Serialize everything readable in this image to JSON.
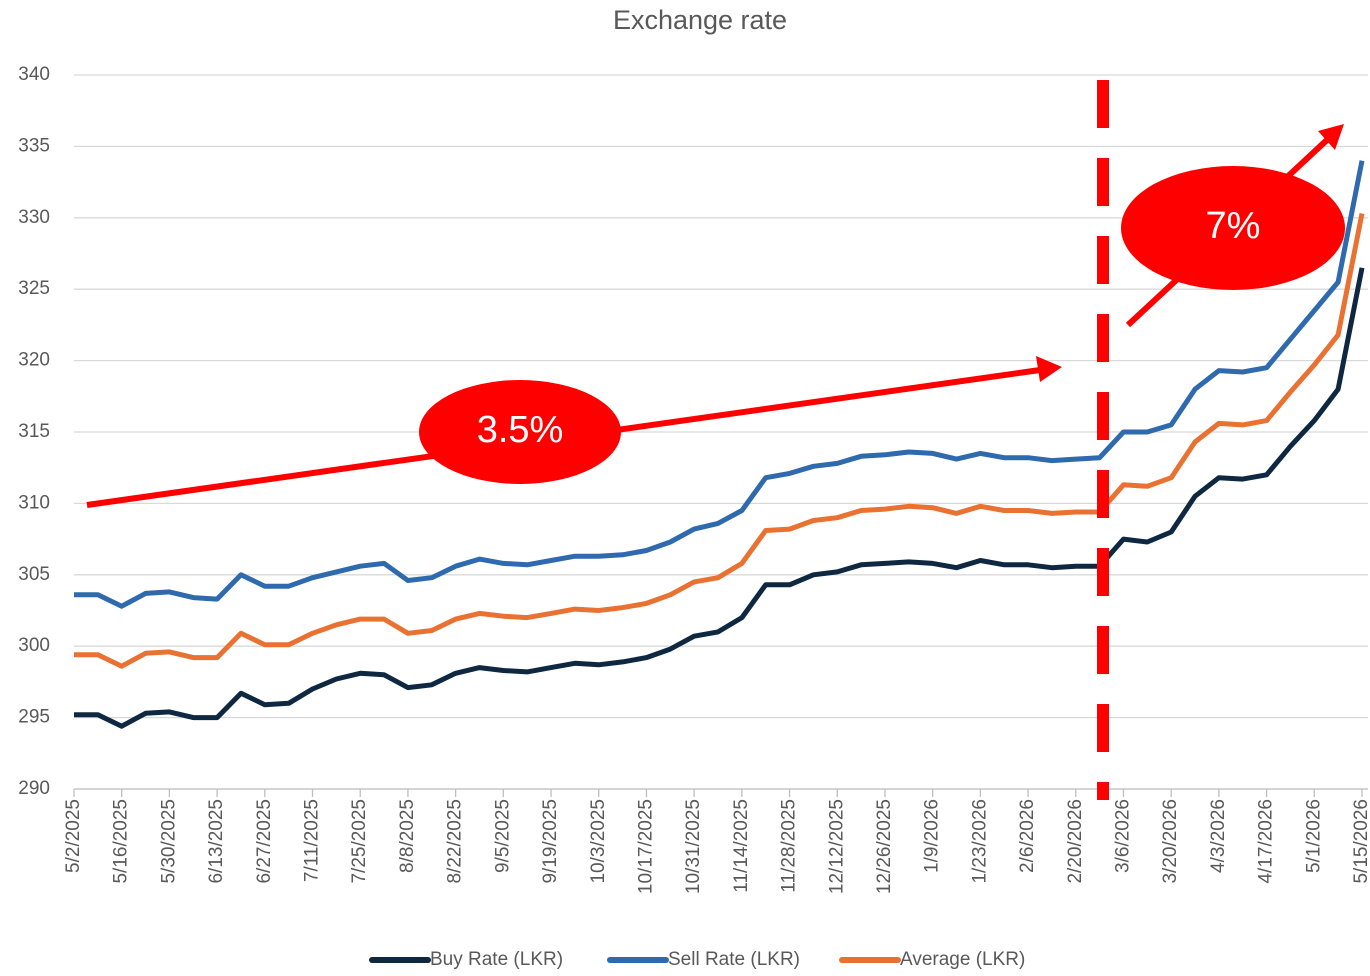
{
  "chart_data": {
    "type": "line",
    "title": "Exchange rate",
    "categories": [
      "5/2/2025",
      null,
      "5/16/2025",
      null,
      "5/30/2025",
      null,
      "6/13/2025",
      null,
      "6/27/2025",
      null,
      "7/11/2025",
      null,
      "7/25/2025",
      null,
      "8/8/2025",
      null,
      "8/22/2025",
      null,
      "9/5/2025",
      null,
      "9/19/2025",
      null,
      "10/3/2025",
      null,
      "10/17/2025",
      null,
      "10/31/2025",
      null,
      "11/14/2025",
      null,
      "11/28/2025",
      null,
      "12/12/2025",
      null,
      "12/26/2025",
      null,
      "1/9/2026",
      null,
      "1/23/2026",
      null,
      "2/6/2026",
      null,
      "2/20/2026",
      null,
      "3/6/2026",
      null,
      "3/20/2026",
      null,
      "4/3/2026",
      null,
      "4/17/2026",
      null,
      "5/1/2026",
      null,
      "5/15/2026"
    ],
    "series": [
      {
        "name": "Buy Rate (LKR)",
        "color": "#0e2841",
        "values": [
          295.2,
          295.2,
          294.4,
          295.3,
          295.4,
          295.0,
          295.0,
          296.7,
          295.9,
          296.0,
          297.0,
          297.7,
          298.1,
          298.0,
          297.1,
          297.3,
          298.1,
          298.5,
          298.3,
          298.2,
          298.5,
          298.8,
          298.7,
          298.9,
          299.2,
          299.8,
          300.7,
          301.0,
          302.0,
          304.3,
          304.3,
          305.0,
          305.2,
          305.7,
          305.8,
          305.9,
          305.8,
          305.5,
          306.0,
          305.7,
          305.7,
          305.5,
          305.6,
          305.6,
          307.5,
          307.3,
          308.0,
          310.5,
          311.8,
          311.7,
          312.0,
          314.0,
          315.8,
          318.0,
          326.5
        ]
      },
      {
        "name": "Sell Rate (LKR)",
        "color": "#2e6aad",
        "values": [
          303.6,
          303.6,
          302.8,
          303.7,
          303.8,
          303.4,
          303.3,
          305.0,
          304.2,
          304.2,
          304.8,
          305.2,
          305.6,
          305.8,
          304.6,
          304.8,
          305.6,
          306.1,
          305.8,
          305.7,
          306.0,
          306.3,
          306.3,
          306.4,
          306.7,
          307.3,
          308.2,
          308.6,
          309.5,
          311.8,
          312.1,
          312.6,
          312.8,
          313.3,
          313.4,
          313.6,
          313.5,
          313.1,
          313.5,
          313.2,
          313.2,
          313.0,
          313.1,
          313.2,
          315.0,
          315.0,
          315.5,
          318.0,
          319.3,
          319.2,
          319.5,
          321.5,
          323.5,
          325.5,
          334.0
        ]
      },
      {
        "name": "Average (LKR)",
        "color": "#e97132",
        "values": [
          299.4,
          299.4,
          298.6,
          299.5,
          299.6,
          299.2,
          299.2,
          300.9,
          300.1,
          300.1,
          300.9,
          301.5,
          301.9,
          301.9,
          300.9,
          301.1,
          301.9,
          302.3,
          302.1,
          302.0,
          302.3,
          302.6,
          302.5,
          302.7,
          303.0,
          303.6,
          304.5,
          304.8,
          305.8,
          308.1,
          308.2,
          308.8,
          309.0,
          309.5,
          309.6,
          309.8,
          309.7,
          309.3,
          309.8,
          309.5,
          309.5,
          309.3,
          309.4,
          309.4,
          311.3,
          311.2,
          311.8,
          314.3,
          315.6,
          315.5,
          315.8,
          317.8,
          319.7,
          321.8,
          330.3
        ]
      }
    ],
    "ylim": [
      290,
      340
    ],
    "yticks": [
      290,
      295,
      300,
      305,
      310,
      315,
      320,
      325,
      330,
      335,
      340
    ],
    "grid": true,
    "annotations": [
      "3.5%",
      "7%"
    ]
  }
}
